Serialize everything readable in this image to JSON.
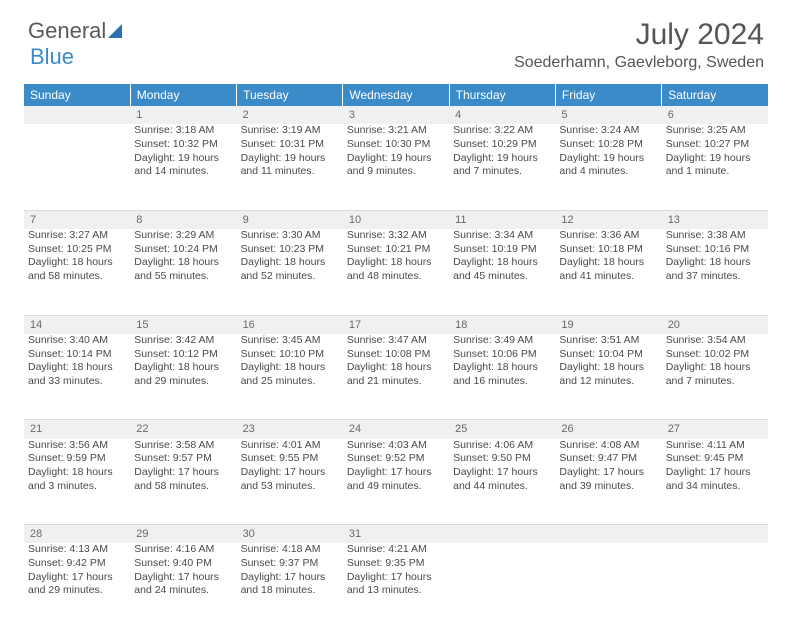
{
  "logo": {
    "text1": "General",
    "text2": "Blue"
  },
  "title": "July 2024",
  "location": "Soederhamn, Gaevleborg, Sweden",
  "colors": {
    "header_bg": "#3b8bc9",
    "header_text": "#ffffff",
    "daynum_bg": "#eef0f2",
    "text": "#4a4a4a"
  },
  "weekdays": [
    "Sunday",
    "Monday",
    "Tuesday",
    "Wednesday",
    "Thursday",
    "Friday",
    "Saturday"
  ],
  "weeks": [
    [
      {
        "n": "",
        "sr": "",
        "ss": "",
        "dl": ""
      },
      {
        "n": "1",
        "sr": "Sunrise: 3:18 AM",
        "ss": "Sunset: 10:32 PM",
        "dl": "Daylight: 19 hours and 14 minutes."
      },
      {
        "n": "2",
        "sr": "Sunrise: 3:19 AM",
        "ss": "Sunset: 10:31 PM",
        "dl": "Daylight: 19 hours and 11 minutes."
      },
      {
        "n": "3",
        "sr": "Sunrise: 3:21 AM",
        "ss": "Sunset: 10:30 PM",
        "dl": "Daylight: 19 hours and 9 minutes."
      },
      {
        "n": "4",
        "sr": "Sunrise: 3:22 AM",
        "ss": "Sunset: 10:29 PM",
        "dl": "Daylight: 19 hours and 7 minutes."
      },
      {
        "n": "5",
        "sr": "Sunrise: 3:24 AM",
        "ss": "Sunset: 10:28 PM",
        "dl": "Daylight: 19 hours and 4 minutes."
      },
      {
        "n": "6",
        "sr": "Sunrise: 3:25 AM",
        "ss": "Sunset: 10:27 PM",
        "dl": "Daylight: 19 hours and 1 minute."
      }
    ],
    [
      {
        "n": "7",
        "sr": "Sunrise: 3:27 AM",
        "ss": "Sunset: 10:25 PM",
        "dl": "Daylight: 18 hours and 58 minutes."
      },
      {
        "n": "8",
        "sr": "Sunrise: 3:29 AM",
        "ss": "Sunset: 10:24 PM",
        "dl": "Daylight: 18 hours and 55 minutes."
      },
      {
        "n": "9",
        "sr": "Sunrise: 3:30 AM",
        "ss": "Sunset: 10:23 PM",
        "dl": "Daylight: 18 hours and 52 minutes."
      },
      {
        "n": "10",
        "sr": "Sunrise: 3:32 AM",
        "ss": "Sunset: 10:21 PM",
        "dl": "Daylight: 18 hours and 48 minutes."
      },
      {
        "n": "11",
        "sr": "Sunrise: 3:34 AM",
        "ss": "Sunset: 10:19 PM",
        "dl": "Daylight: 18 hours and 45 minutes."
      },
      {
        "n": "12",
        "sr": "Sunrise: 3:36 AM",
        "ss": "Sunset: 10:18 PM",
        "dl": "Daylight: 18 hours and 41 minutes."
      },
      {
        "n": "13",
        "sr": "Sunrise: 3:38 AM",
        "ss": "Sunset: 10:16 PM",
        "dl": "Daylight: 18 hours and 37 minutes."
      }
    ],
    [
      {
        "n": "14",
        "sr": "Sunrise: 3:40 AM",
        "ss": "Sunset: 10:14 PM",
        "dl": "Daylight: 18 hours and 33 minutes."
      },
      {
        "n": "15",
        "sr": "Sunrise: 3:42 AM",
        "ss": "Sunset: 10:12 PM",
        "dl": "Daylight: 18 hours and 29 minutes."
      },
      {
        "n": "16",
        "sr": "Sunrise: 3:45 AM",
        "ss": "Sunset: 10:10 PM",
        "dl": "Daylight: 18 hours and 25 minutes."
      },
      {
        "n": "17",
        "sr": "Sunrise: 3:47 AM",
        "ss": "Sunset: 10:08 PM",
        "dl": "Daylight: 18 hours and 21 minutes."
      },
      {
        "n": "18",
        "sr": "Sunrise: 3:49 AM",
        "ss": "Sunset: 10:06 PM",
        "dl": "Daylight: 18 hours and 16 minutes."
      },
      {
        "n": "19",
        "sr": "Sunrise: 3:51 AM",
        "ss": "Sunset: 10:04 PM",
        "dl": "Daylight: 18 hours and 12 minutes."
      },
      {
        "n": "20",
        "sr": "Sunrise: 3:54 AM",
        "ss": "Sunset: 10:02 PM",
        "dl": "Daylight: 18 hours and 7 minutes."
      }
    ],
    [
      {
        "n": "21",
        "sr": "Sunrise: 3:56 AM",
        "ss": "Sunset: 9:59 PM",
        "dl": "Daylight: 18 hours and 3 minutes."
      },
      {
        "n": "22",
        "sr": "Sunrise: 3:58 AM",
        "ss": "Sunset: 9:57 PM",
        "dl": "Daylight: 17 hours and 58 minutes."
      },
      {
        "n": "23",
        "sr": "Sunrise: 4:01 AM",
        "ss": "Sunset: 9:55 PM",
        "dl": "Daylight: 17 hours and 53 minutes."
      },
      {
        "n": "24",
        "sr": "Sunrise: 4:03 AM",
        "ss": "Sunset: 9:52 PM",
        "dl": "Daylight: 17 hours and 49 minutes."
      },
      {
        "n": "25",
        "sr": "Sunrise: 4:06 AM",
        "ss": "Sunset: 9:50 PM",
        "dl": "Daylight: 17 hours and 44 minutes."
      },
      {
        "n": "26",
        "sr": "Sunrise: 4:08 AM",
        "ss": "Sunset: 9:47 PM",
        "dl": "Daylight: 17 hours and 39 minutes."
      },
      {
        "n": "27",
        "sr": "Sunrise: 4:11 AM",
        "ss": "Sunset: 9:45 PM",
        "dl": "Daylight: 17 hours and 34 minutes."
      }
    ],
    [
      {
        "n": "28",
        "sr": "Sunrise: 4:13 AM",
        "ss": "Sunset: 9:42 PM",
        "dl": "Daylight: 17 hours and 29 minutes."
      },
      {
        "n": "29",
        "sr": "Sunrise: 4:16 AM",
        "ss": "Sunset: 9:40 PM",
        "dl": "Daylight: 17 hours and 24 minutes."
      },
      {
        "n": "30",
        "sr": "Sunrise: 4:18 AM",
        "ss": "Sunset: 9:37 PM",
        "dl": "Daylight: 17 hours and 18 minutes."
      },
      {
        "n": "31",
        "sr": "Sunrise: 4:21 AM",
        "ss": "Sunset: 9:35 PM",
        "dl": "Daylight: 17 hours and 13 minutes."
      },
      {
        "n": "",
        "sr": "",
        "ss": "",
        "dl": ""
      },
      {
        "n": "",
        "sr": "",
        "ss": "",
        "dl": ""
      },
      {
        "n": "",
        "sr": "",
        "ss": "",
        "dl": ""
      }
    ]
  ]
}
